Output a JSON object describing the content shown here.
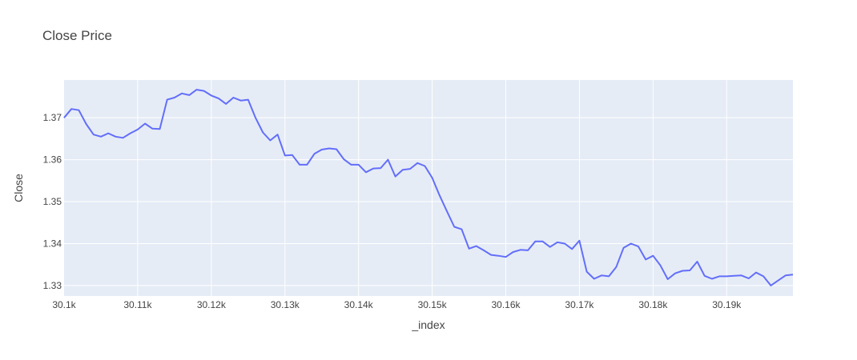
{
  "chart_data": {
    "type": "line",
    "title": "Close Price",
    "xlabel": "_index",
    "ylabel": "Close",
    "xlim": [
      30100,
      30199
    ],
    "ylim": [
      1.3275,
      1.379
    ],
    "grid": true,
    "x_ticks": [
      {
        "value": 30100,
        "label": "30.1k"
      },
      {
        "value": 30110,
        "label": "30.11k"
      },
      {
        "value": 30120,
        "label": "30.12k"
      },
      {
        "value": 30130,
        "label": "30.13k"
      },
      {
        "value": 30140,
        "label": "30.14k"
      },
      {
        "value": 30150,
        "label": "30.15k"
      },
      {
        "value": 30160,
        "label": "30.16k"
      },
      {
        "value": 30170,
        "label": "30.17k"
      },
      {
        "value": 30180,
        "label": "30.18k"
      },
      {
        "value": 30190,
        "label": "30.19k"
      }
    ],
    "y_ticks": [
      {
        "value": 1.33,
        "label": "1.33"
      },
      {
        "value": 1.34,
        "label": "1.34"
      },
      {
        "value": 1.35,
        "label": "1.35"
      },
      {
        "value": 1.36,
        "label": "1.36"
      },
      {
        "value": 1.37,
        "label": "1.37"
      }
    ],
    "series": [
      {
        "color": "#636efa",
        "x": [
          30100,
          30101,
          30102,
          30103,
          30104,
          30105,
          30106,
          30107,
          30108,
          30109,
          30110,
          30111,
          30112,
          30113,
          30114,
          30115,
          30116,
          30117,
          30118,
          30119,
          30120,
          30121,
          30122,
          30123,
          30124,
          30125,
          30126,
          30127,
          30128,
          30129,
          30130,
          30131,
          30132,
          30133,
          30134,
          30135,
          30136,
          30137,
          30138,
          30139,
          30140,
          30141,
          30142,
          30143,
          30144,
          30145,
          30146,
          30147,
          30148,
          30149,
          30150,
          30151,
          30152,
          30153,
          30154,
          30155,
          30156,
          30157,
          30158,
          30159,
          30160,
          30161,
          30162,
          30163,
          30164,
          30165,
          30166,
          30167,
          30168,
          30169,
          30170,
          30171,
          30172,
          30173,
          30174,
          30175,
          30176,
          30177,
          30178,
          30179,
          30180,
          30181,
          30182,
          30183,
          30184,
          30185,
          30186,
          30187,
          30188,
          30189,
          30190,
          30191,
          30192,
          30193,
          30194,
          30195,
          30196,
          30197,
          30198,
          30199
        ],
        "y": [
          1.37,
          1.3721,
          1.3718,
          1.3685,
          1.366,
          1.3655,
          1.3663,
          1.3655,
          1.3652,
          1.3663,
          1.3672,
          1.3686,
          1.3674,
          1.3673,
          1.3743,
          1.3748,
          1.3758,
          1.3754,
          1.3767,
          1.3764,
          1.3753,
          1.3746,
          1.3733,
          1.3748,
          1.3741,
          1.3743,
          1.37,
          1.3665,
          1.3646,
          1.366,
          1.361,
          1.3611,
          1.3588,
          1.3588,
          1.3614,
          1.3624,
          1.3627,
          1.3625,
          1.3601,
          1.3588,
          1.3588,
          1.357,
          1.3579,
          1.358,
          1.36,
          1.356,
          1.3576,
          1.3578,
          1.3592,
          1.3585,
          1.3557,
          1.3515,
          1.3477,
          1.344,
          1.3434,
          1.3388,
          1.3394,
          1.3384,
          1.3373,
          1.3371,
          1.3368,
          1.338,
          1.3385,
          1.3384,
          1.3405,
          1.3405,
          1.3392,
          1.3403,
          1.34,
          1.3387,
          1.3407,
          1.3333,
          1.3316,
          1.3324,
          1.3322,
          1.3344,
          1.339,
          1.34,
          1.3393,
          1.3362,
          1.3371,
          1.3348,
          1.3315,
          1.3329,
          1.3335,
          1.3336,
          1.3357,
          1.3323,
          1.3316,
          1.3322,
          1.3322,
          1.3323,
          1.3324,
          1.3317,
          1.3331,
          1.3322,
          1.33,
          1.3312,
          1.3324,
          1.3326
        ]
      }
    ]
  }
}
